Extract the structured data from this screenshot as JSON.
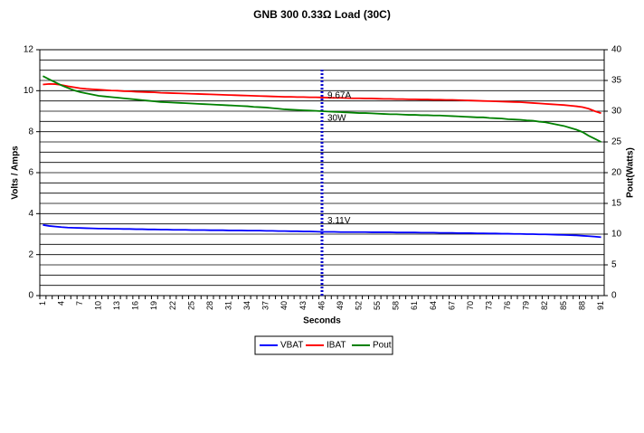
{
  "chart_data": {
    "type": "line",
    "title": "GNB 300  0.33Ω Load (30C)",
    "x_label": "Seconds",
    "y_label": "Volts / Amps",
    "y2_label": "Pout(Watts)",
    "categories": [
      "1",
      null,
      null,
      "4",
      null,
      null,
      "7",
      null,
      null,
      "10",
      null,
      null,
      "13",
      null,
      null,
      "16",
      null,
      null,
      "19",
      null,
      null,
      "22",
      null,
      null,
      "25",
      null,
      null,
      "28",
      null,
      null,
      "31",
      null,
      null,
      "34",
      null,
      null,
      "37",
      null,
      null,
      "40",
      null,
      null,
      "43",
      null,
      null,
      "46",
      null,
      null,
      "49",
      null,
      null,
      "52",
      null,
      null,
      "55",
      null,
      null,
      "58",
      null,
      null,
      "61",
      null,
      null,
      "64",
      null,
      null,
      "67",
      null,
      null,
      "70",
      null,
      null,
      "73",
      null,
      null,
      "76",
      null,
      null,
      "79",
      null,
      null,
      "82",
      null,
      null,
      "85",
      null,
      null,
      "88",
      null,
      null,
      "91"
    ],
    "ylim": [
      0,
      12
    ],
    "yticks": [
      0,
      2,
      4,
      6,
      8,
      10,
      12
    ],
    "y_minor_grid": [
      0.5,
      1,
      1.5,
      2.5,
      3,
      3.5,
      4.5,
      5,
      5.5,
      6.5,
      7,
      7.5,
      8.5,
      9,
      9.5,
      10.5,
      11,
      11.5
    ],
    "y2lim": [
      0,
      40
    ],
    "y2ticks": [
      0,
      5,
      10,
      15,
      20,
      25,
      30,
      35,
      40
    ],
    "grid": true,
    "legend": "bottom",
    "series": [
      {
        "name": "VBAT",
        "color": "#0000ff",
        "values": [
          3.45,
          3.4,
          3.37,
          3.34,
          3.32,
          3.31,
          3.3,
          3.29,
          3.28,
          3.27,
          3.27,
          3.26,
          3.26,
          3.25,
          3.25,
          3.24,
          3.24,
          3.23,
          3.23,
          3.22,
          3.22,
          3.21,
          3.21,
          3.21,
          3.2,
          3.2,
          3.2,
          3.19,
          3.19,
          3.19,
          3.18,
          3.18,
          3.18,
          3.17,
          3.17,
          3.17,
          3.16,
          3.16,
          3.15,
          3.15,
          3.14,
          3.14,
          3.13,
          3.13,
          3.12,
          3.11,
          3.11,
          3.11,
          3.1,
          3.1,
          3.1,
          3.1,
          3.1,
          3.09,
          3.09,
          3.09,
          3.09,
          3.08,
          3.08,
          3.08,
          3.08,
          3.07,
          3.07,
          3.07,
          3.06,
          3.06,
          3.06,
          3.05,
          3.05,
          3.05,
          3.04,
          3.04,
          3.03,
          3.03,
          3.02,
          3.02,
          3.01,
          3.01,
          3.0,
          3.0,
          2.99,
          2.99,
          2.98,
          2.97,
          2.96,
          2.95,
          2.94,
          2.92,
          2.9,
          2.88,
          2.85
        ]
      },
      {
        "name": "IBAT",
        "color": "#ff0000",
        "values": [
          10.3,
          10.33,
          10.32,
          10.28,
          10.22,
          10.17,
          10.12,
          10.09,
          10.07,
          10.05,
          10.03,
          10.01,
          10.0,
          9.98,
          9.97,
          9.95,
          9.94,
          9.93,
          9.92,
          9.9,
          9.89,
          9.88,
          9.87,
          9.86,
          9.85,
          9.84,
          9.83,
          9.82,
          9.81,
          9.8,
          9.79,
          9.78,
          9.77,
          9.76,
          9.75,
          9.74,
          9.73,
          9.72,
          9.71,
          9.7,
          9.7,
          9.69,
          9.69,
          9.68,
          9.68,
          9.67,
          9.66,
          9.65,
          9.65,
          9.64,
          9.63,
          9.63,
          9.62,
          9.62,
          9.61,
          9.6,
          9.6,
          9.59,
          9.59,
          9.58,
          9.58,
          9.57,
          9.57,
          9.56,
          9.56,
          9.55,
          9.55,
          9.54,
          9.53,
          9.52,
          9.51,
          9.5,
          9.49,
          9.48,
          9.47,
          9.46,
          9.45,
          9.44,
          9.42,
          9.4,
          9.38,
          9.36,
          9.34,
          9.32,
          9.3,
          9.27,
          9.24,
          9.2,
          9.12,
          9.0,
          8.9
        ]
      },
      {
        "name": "Pout",
        "color": "#008000",
        "axis": "y2",
        "values": [
          35.7,
          35.2,
          34.7,
          34.2,
          33.8,
          33.4,
          33.1,
          32.9,
          32.7,
          32.5,
          32.4,
          32.3,
          32.2,
          32.1,
          32.0,
          31.9,
          31.8,
          31.7,
          31.6,
          31.5,
          31.45,
          31.4,
          31.35,
          31.3,
          31.25,
          31.2,
          31.15,
          31.1,
          31.05,
          31.0,
          30.95,
          30.9,
          30.85,
          30.8,
          30.7,
          30.65,
          30.6,
          30.5,
          30.4,
          30.3,
          30.25,
          30.2,
          30.15,
          30.1,
          30.05,
          30.0,
          29.95,
          29.9,
          29.85,
          29.8,
          29.75,
          29.7,
          29.7,
          29.65,
          29.6,
          29.55,
          29.5,
          29.5,
          29.45,
          29.4,
          29.4,
          29.35,
          29.35,
          29.3,
          29.3,
          29.25,
          29.2,
          29.15,
          29.1,
          29.05,
          29.0,
          29.0,
          28.9,
          28.85,
          28.8,
          28.7,
          28.65,
          28.6,
          28.5,
          28.45,
          28.3,
          28.2,
          28.0,
          27.8,
          27.6,
          27.3,
          27.0,
          26.6,
          26.0,
          25.5,
          25.0
        ]
      }
    ],
    "marker": {
      "category": "46",
      "color": "#0000cc",
      "annotations": [
        "9.67A",
        "30W",
        "3.11V"
      ]
    }
  }
}
